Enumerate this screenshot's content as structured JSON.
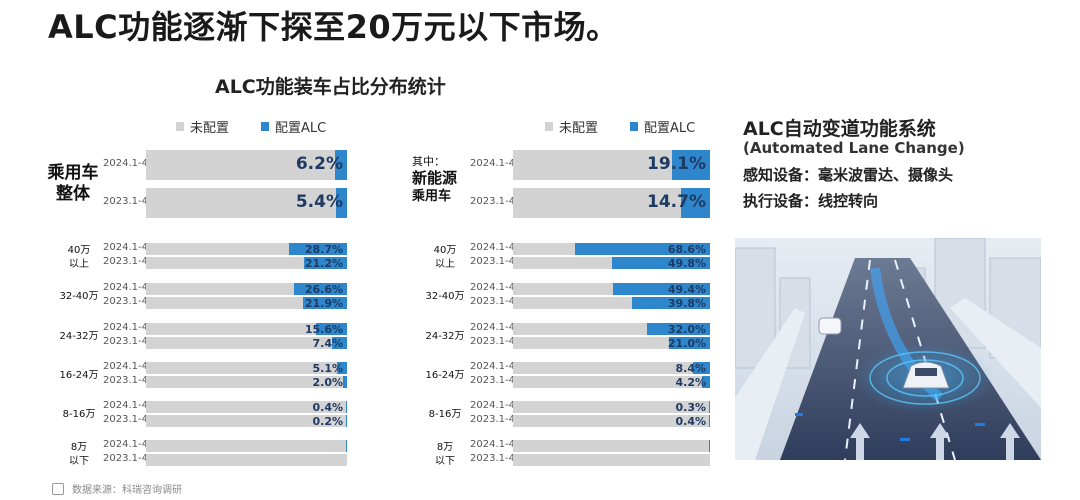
{
  "headline": "ALC功能逐渐下探至20万元以下市场。",
  "chart_title": "ALC功能装车占比分布统计",
  "legend": {
    "not_equipped": "未配置",
    "equipped": "配置ALC"
  },
  "colors": {
    "not_equipped": "#d3d3d3",
    "equipped": "#2e86cc",
    "value_text": "#1f3b63"
  },
  "left_section_label": [
    "乘用车",
    "整体"
  ],
  "right_section_label": {
    "prefix": "其中：",
    "lines": [
      "新能源",
      "乘用车"
    ]
  },
  "side_panel": {
    "title": "ALC自动变道功能系统",
    "subtitle": "(Automated Lane Change)",
    "line1": "感知设备：毫米波雷达、摄像头",
    "line2": "执行设备：线控转向"
  },
  "source": "数据来源：科瑞咨询调研",
  "chart_data": [
    {
      "type": "bar",
      "orientation": "horizontal",
      "stacked_100": true,
      "title": "ALC功能装车占比分布统计",
      "legend": [
        "未配置",
        "配置ALC"
      ],
      "legend_position": "top",
      "overall": {
        "label": "乘用车整体",
        "rows": [
          {
            "period": "2024.1-4",
            "value_pct": 6.2,
            "label": "6.2%"
          },
          {
            "period": "2023.1-4",
            "value_pct": 5.4,
            "label": "5.4%"
          }
        ]
      },
      "groups": [
        {
          "label": "40万以上",
          "label_lines": [
            "40万",
            "以上"
          ],
          "rows": [
            {
              "period": "2024.1-4",
              "value_pct": 28.7,
              "label": "28.7%"
            },
            {
              "period": "2023.1-4",
              "value_pct": 21.2,
              "label": "21.2%"
            }
          ]
        },
        {
          "label": "32-40万",
          "label_lines": [
            "32-40万"
          ],
          "rows": [
            {
              "period": "2024.1-4",
              "value_pct": 26.6,
              "label": "26.6%"
            },
            {
              "period": "2023.1-4",
              "value_pct": 21.9,
              "label": "21.9%"
            }
          ]
        },
        {
          "label": "24-32万",
          "label_lines": [
            "24-32万"
          ],
          "rows": [
            {
              "period": "2024.1-4",
              "value_pct": 15.6,
              "label": "15.6%"
            },
            {
              "period": "2023.1-4",
              "value_pct": 7.4,
              "label": "7.4%"
            }
          ]
        },
        {
          "label": "16-24万",
          "label_lines": [
            "16-24万"
          ],
          "rows": [
            {
              "period": "2024.1-4",
              "value_pct": 5.1,
              "label": "5.1%"
            },
            {
              "period": "2023.1-4",
              "value_pct": 2.0,
              "label": "2.0%"
            }
          ]
        },
        {
          "label": "8-16万",
          "label_lines": [
            "8-16万"
          ],
          "rows": [
            {
              "period": "2024.1-4",
              "value_pct": 0.4,
              "label": "0.4%"
            },
            {
              "period": "2023.1-4",
              "value_pct": 0.2,
              "label": "0.2%"
            }
          ]
        },
        {
          "label": "8万以下",
          "label_lines": [
            "8万",
            "以下"
          ],
          "rows": [
            {
              "period": "2024.1-4",
              "value_pct": 0.1,
              "label": ""
            },
            {
              "period": "2023.1-4",
              "value_pct": 0.0,
              "label": ""
            }
          ]
        }
      ]
    },
    {
      "type": "bar",
      "orientation": "horizontal",
      "stacked_100": true,
      "legend": [
        "未配置",
        "配置ALC"
      ],
      "legend_position": "top",
      "overall": {
        "label": "其中：新能源乘用车",
        "rows": [
          {
            "period": "2024.1-4",
            "value_pct": 19.1,
            "label": "19.1%"
          },
          {
            "period": "2023.1-4",
            "value_pct": 14.7,
            "label": "14.7%"
          }
        ]
      },
      "groups": [
        {
          "label": "40万以上",
          "label_lines": [
            "40万",
            "以上"
          ],
          "rows": [
            {
              "period": "2024.1-4",
              "value_pct": 68.6,
              "label": "68.6%"
            },
            {
              "period": "2023.1-4",
              "value_pct": 49.8,
              "label": "49.8%"
            }
          ]
        },
        {
          "label": "32-40万",
          "label_lines": [
            "32-40万"
          ],
          "rows": [
            {
              "period": "2024.1-4",
              "value_pct": 49.4,
              "label": "49.4%"
            },
            {
              "period": "2023.1-4",
              "value_pct": 39.8,
              "label": "39.8%"
            }
          ]
        },
        {
          "label": "24-32万",
          "label_lines": [
            "24-32万"
          ],
          "rows": [
            {
              "period": "2024.1-4",
              "value_pct": 32.0,
              "label": "32.0%"
            },
            {
              "period": "2023.1-4",
              "value_pct": 21.0,
              "label": "21.0%"
            }
          ]
        },
        {
          "label": "16-24万",
          "label_lines": [
            "16-24万"
          ],
          "rows": [
            {
              "period": "2024.1-4",
              "value_pct": 8.4,
              "label": "8.4%"
            },
            {
              "period": "2023.1-4",
              "value_pct": 4.2,
              "label": "4.2%"
            }
          ]
        },
        {
          "label": "8-16万",
          "label_lines": [
            "8-16万"
          ],
          "rows": [
            {
              "period": "2024.1-4",
              "value_pct": 0.3,
              "label": "0.3%"
            },
            {
              "period": "2023.1-4",
              "value_pct": 0.4,
              "label": "0.4%"
            }
          ]
        },
        {
          "label": "8万以下",
          "label_lines": [
            "8万",
            "以下"
          ],
          "rows": [
            {
              "period": "2024.1-4",
              "value_pct": 0.2,
              "label": ""
            },
            {
              "period": "2023.1-4",
              "value_pct": 0.0,
              "label": ""
            }
          ]
        }
      ]
    }
  ]
}
